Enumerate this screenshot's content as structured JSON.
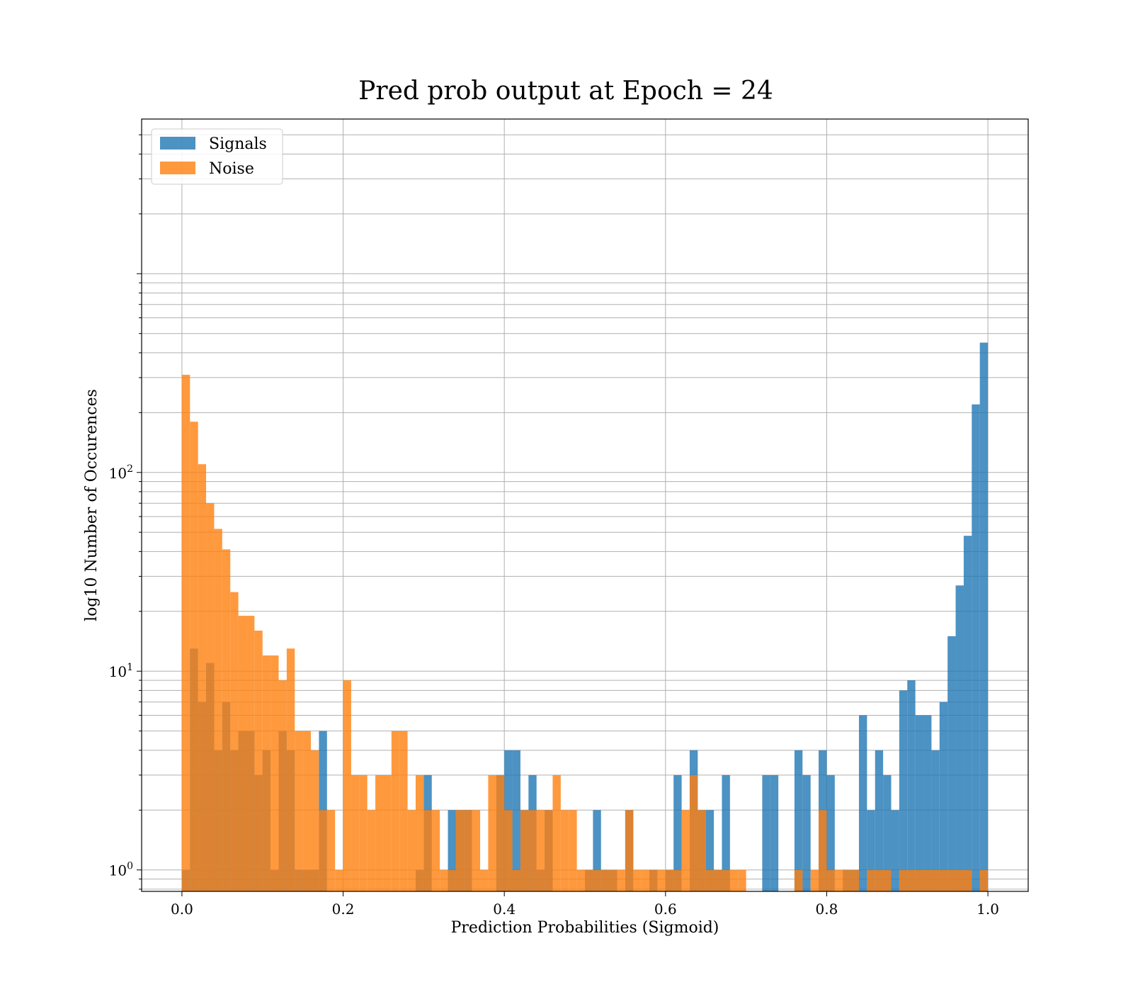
{
  "chart_data": {
    "type": "bar",
    "subtype": "histogram",
    "title": "Pred prob output at Epoch = 24",
    "xlabel": "Prediction Probabilities (Sigmoid)",
    "ylabel": "log10 Number of Occurences",
    "xlim": [
      -0.05,
      1.05
    ],
    "ylim": [
      0.78,
      6000
    ],
    "yscale": "log",
    "grid": true,
    "legend_position": "upper-left",
    "bins": 100,
    "bin_range": [
      0,
      1
    ],
    "x_ticks": [
      "0.0",
      "0.2",
      "0.4",
      "0.6",
      "0.8",
      "1.0"
    ],
    "y_ticks": [
      {
        "base": "10",
        "exp": "0"
      },
      {
        "base": "10",
        "exp": "1"
      },
      {
        "base": "10",
        "exp": "2"
      }
    ],
    "series": [
      {
        "name": "Signals",
        "color": "#1f77b4",
        "counts": [
          1,
          13,
          7,
          11,
          4,
          7,
          4,
          5,
          5,
          3,
          4,
          1,
          5,
          4,
          1,
          1,
          1,
          5,
          0,
          0,
          0,
          0,
          0,
          0,
          0,
          0,
          0,
          0,
          0,
          1,
          3,
          0,
          0,
          2,
          2,
          2,
          0,
          0,
          0,
          3,
          4,
          4,
          2,
          3,
          1,
          2,
          0,
          0,
          0,
          0,
          1,
          2,
          1,
          1,
          0,
          2,
          0,
          0,
          1,
          0,
          1,
          3,
          0,
          4,
          2,
          2,
          1,
          3,
          0,
          0,
          0,
          0,
          3,
          3,
          0,
          0,
          4,
          3,
          0,
          4,
          3,
          0,
          1,
          1,
          6,
          2,
          4,
          3,
          2,
          8,
          9,
          6,
          6,
          4,
          7,
          15,
          27,
          48,
          220,
          450
        ]
      },
      {
        "name": "Noise",
        "color": "#ff7f0e",
        "counts": [
          310,
          180,
          110,
          70,
          52,
          41,
          25,
          19,
          19,
          16,
          12,
          12,
          9,
          13,
          5,
          5,
          4,
          2,
          2,
          1,
          9,
          3,
          3,
          2,
          3,
          3,
          5,
          5,
          2,
          3,
          2,
          2,
          1,
          1,
          2,
          2,
          2,
          1,
          3,
          3,
          2,
          1,
          2,
          2,
          2,
          2,
          3,
          2,
          2,
          1,
          1,
          1,
          1,
          1,
          1,
          2,
          1,
          1,
          1,
          1,
          1,
          1,
          2,
          3,
          2,
          1,
          1,
          1,
          1,
          1,
          0,
          0,
          0,
          0,
          0,
          0,
          1,
          0,
          1,
          2,
          1,
          1,
          1,
          1,
          0,
          1,
          1,
          1,
          0,
          1,
          1,
          1,
          1,
          1,
          1,
          1,
          1,
          1,
          0,
          1
        ]
      }
    ]
  }
}
